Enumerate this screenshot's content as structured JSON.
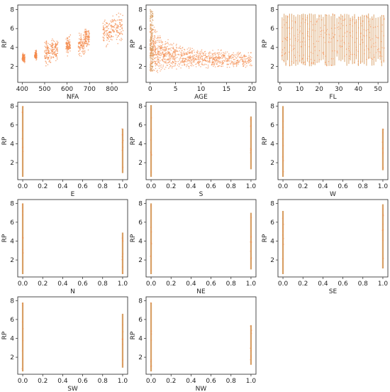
{
  "figure": {
    "point_color": "#f4894a",
    "line_color": "#d8a066"
  },
  "chart_data": [
    {
      "type": "scatter",
      "xlabel": "NFA",
      "ylabel": "RP",
      "xlim": [
        380,
        870
      ],
      "ylim": [
        0.3,
        8.5
      ],
      "xticks": [
        400,
        500,
        600,
        700,
        800
      ],
      "yticks": [
        2,
        4,
        6,
        8
      ],
      "clusters": [
        {
          "x": [
            400,
            412
          ],
          "y": [
            2.2,
            3.6
          ]
        },
        {
          "x": [
            455,
            465
          ],
          "y": [
            2.5,
            3.8
          ]
        },
        {
          "x": [
            500,
            530
          ],
          "y": [
            1.7,
            5.2
          ]
        },
        {
          "x": [
            530,
            560
          ],
          "y": [
            2.2,
            5.5
          ]
        },
        {
          "x": [
            595,
            615
          ],
          "y": [
            3.0,
            5.5
          ]
        },
        {
          "x": [
            650,
            680
          ],
          "y": [
            2.6,
            6.0
          ]
        },
        {
          "x": [
            680,
            700
          ],
          "y": [
            3.5,
            6.5
          ]
        },
        {
          "x": [
            760,
            800
          ],
          "y": [
            3.8,
            7.6
          ]
        },
        {
          "x": [
            800,
            850
          ],
          "y": [
            4.2,
            8.1
          ]
        }
      ]
    },
    {
      "type": "scatter",
      "xlabel": "AGE",
      "ylabel": "RP",
      "xlim": [
        -0.8,
        20.8
      ],
      "ylim": [
        0.3,
        8.5
      ],
      "xticks": [
        0,
        5,
        10,
        15,
        20
      ],
      "yticks": [
        2,
        4,
        6,
        8
      ],
      "decay": {
        "x": [
          0,
          20
        ],
        "start": [
          1.2,
          8.2
        ],
        "end": [
          1.8,
          4.0
        ]
      }
    },
    {
      "type": "scatter",
      "xlabel": "FL",
      "ylabel": "RP",
      "xlim": [
        -1,
        55
      ],
      "ylim": [
        0.3,
        8.5
      ],
      "xticks": [
        0,
        10,
        20,
        30,
        40,
        50
      ],
      "yticks": [
        2,
        4,
        6,
        8
      ],
      "stripes": {
        "from": 1,
        "to": 53,
        "y": [
          2.0,
          7.6
        ]
      }
    },
    {
      "type": "scatter",
      "xlabel": "E",
      "ylabel": "RP",
      "xlim": [
        -0.05,
        1.05
      ],
      "ylim": [
        0.2,
        8.4
      ],
      "xticks": [
        0.0,
        0.2,
        0.4,
        0.6,
        0.8,
        1.0
      ],
      "yticks": [
        2,
        4,
        6,
        8
      ],
      "bands": [
        {
          "x": 0,
          "y": [
            0.5,
            8.0
          ]
        },
        {
          "x": 1,
          "y": [
            0.9,
            5.6
          ]
        }
      ]
    },
    {
      "type": "scatter",
      "xlabel": "S",
      "ylabel": "RP",
      "xlim": [
        -0.05,
        1.05
      ],
      "ylim": [
        0.2,
        8.4
      ],
      "xticks": [
        0.0,
        0.2,
        0.4,
        0.6,
        0.8,
        1.0
      ],
      "yticks": [
        2,
        4,
        6,
        8
      ],
      "bands": [
        {
          "x": 0,
          "y": [
            0.5,
            8.1
          ]
        },
        {
          "x": 1,
          "y": [
            1.3,
            6.9
          ]
        }
      ]
    },
    {
      "type": "scatter",
      "xlabel": "W",
      "ylabel": "RP",
      "xlim": [
        -0.05,
        1.05
      ],
      "ylim": [
        0.2,
        8.4
      ],
      "xticks": [
        0.0,
        0.2,
        0.4,
        0.6,
        0.8,
        1.0
      ],
      "yticks": [
        2,
        4,
        6,
        8
      ],
      "bands": [
        {
          "x": 0,
          "y": [
            0.5,
            8.0
          ]
        },
        {
          "x": 1,
          "y": [
            1.2,
            5.6
          ]
        }
      ]
    },
    {
      "type": "scatter",
      "xlabel": "N",
      "ylabel": "RP",
      "xlim": [
        -0.05,
        1.05
      ],
      "ylim": [
        0.2,
        8.4
      ],
      "xticks": [
        0.0,
        0.2,
        0.4,
        0.6,
        0.8,
        1.0
      ],
      "yticks": [
        2,
        4,
        6,
        8
      ],
      "bands": [
        {
          "x": 0,
          "y": [
            0.5,
            8.0
          ]
        },
        {
          "x": 1,
          "y": [
            0.5,
            4.9
          ]
        }
      ]
    },
    {
      "type": "scatter",
      "xlabel": "NE",
      "ylabel": "RP",
      "xlim": [
        -0.05,
        1.05
      ],
      "ylim": [
        0.2,
        8.4
      ],
      "xticks": [
        0.0,
        0.2,
        0.4,
        0.6,
        0.8,
        1.0
      ],
      "yticks": [
        2,
        4,
        6,
        8
      ],
      "bands": [
        {
          "x": 0,
          "y": [
            0.5,
            8.0
          ]
        },
        {
          "x": 1,
          "y": [
            1.0,
            7.0
          ]
        }
      ]
    },
    {
      "type": "scatter",
      "xlabel": "SE",
      "ylabel": "RP",
      "xlim": [
        -0.05,
        1.05
      ],
      "ylim": [
        0.2,
        8.4
      ],
      "xticks": [
        0.0,
        0.2,
        0.4,
        0.6,
        0.8,
        1.0
      ],
      "yticks": [
        2,
        4,
        6,
        8
      ],
      "bands": [
        {
          "x": 0,
          "y": [
            0.5,
            7.2
          ]
        },
        {
          "x": 1,
          "y": [
            1.1,
            7.9
          ]
        }
      ]
    },
    {
      "type": "scatter",
      "xlabel": "SW",
      "ylabel": "RP",
      "xlim": [
        -0.05,
        1.05
      ],
      "ylim": [
        0.2,
        8.4
      ],
      "xticks": [
        0.0,
        0.2,
        0.4,
        0.6,
        0.8,
        1.0
      ],
      "yticks": [
        2,
        4,
        6,
        8
      ],
      "bands": [
        {
          "x": 0,
          "y": [
            0.5,
            7.8
          ]
        },
        {
          "x": 1,
          "y": [
            0.9,
            6.6
          ]
        }
      ]
    },
    {
      "type": "scatter",
      "xlabel": "NW",
      "ylabel": "RP",
      "xlim": [
        -0.05,
        1.05
      ],
      "ylim": [
        0.2,
        8.4
      ],
      "xticks": [
        0.0,
        0.2,
        0.4,
        0.6,
        0.8,
        1.0
      ],
      "yticks": [
        2,
        4,
        6,
        8
      ],
      "bands": [
        {
          "x": 0,
          "y": [
            0.5,
            7.8
          ]
        },
        {
          "x": 1,
          "y": [
            1.2,
            5.4
          ]
        }
      ]
    }
  ]
}
